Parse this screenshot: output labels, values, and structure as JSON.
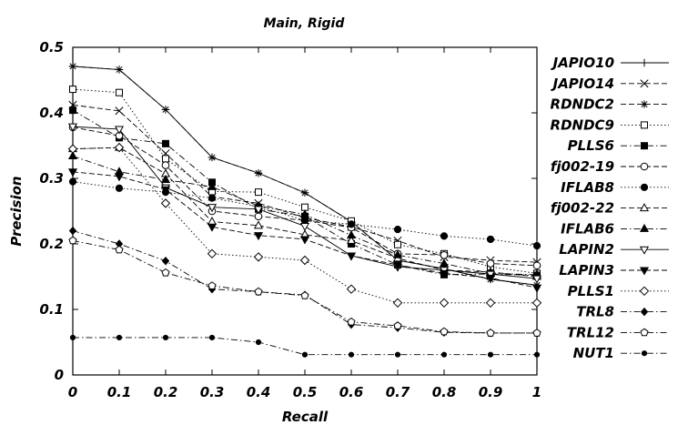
{
  "chart_data": {
    "type": "line",
    "title": "Main, Rigid",
    "xlabel": "Recall",
    "ylabel": "Precision",
    "xlim": [
      0,
      1
    ],
    "ylim": [
      0,
      0.5
    ],
    "x": [
      0,
      0.1,
      0.2,
      0.3,
      0.4,
      0.5,
      0.6,
      0.7,
      0.8,
      0.9,
      1
    ],
    "x_tick_labels": [
      "0",
      "0.1",
      "0.2",
      "0.3",
      "0.4",
      "0.5",
      "0.6",
      "0.7",
      "0.8",
      "0.9",
      "1"
    ],
    "y_ticks": [
      0,
      0.1,
      0.2,
      0.3,
      0.4,
      0.5
    ],
    "y_tick_labels": [
      "0",
      "0.1",
      "0.2",
      "0.3",
      "0.4",
      "0.5"
    ],
    "grid": false,
    "legend_position": "right",
    "series": [
      {
        "name": "JAPIO10",
        "marker": "plus",
        "dash": "solid",
        "values": [
          0.471,
          0.466,
          0.405,
          0.332,
          0.308,
          0.278,
          0.234,
          0.175,
          0.162,
          0.146,
          0.137
        ]
      },
      {
        "name": "JAPIO14",
        "marker": "x",
        "dash": "dashed",
        "values": [
          0.412,
          0.403,
          0.338,
          0.272,
          0.262,
          0.24,
          0.226,
          0.205,
          0.18,
          0.175,
          0.172
        ]
      },
      {
        "name": "RDNDC2",
        "marker": "asterisk",
        "dash": "dashed",
        "values": [
          0.471,
          0.466,
          0.405,
          0.332,
          0.308,
          0.278,
          0.234,
          0.175,
          0.162,
          0.146,
          0.137
        ]
      },
      {
        "name": "RDNDC9",
        "marker": "square-open",
        "dash": "dotted",
        "values": [
          0.436,
          0.431,
          0.33,
          0.28,
          0.279,
          0.256,
          0.235,
          0.199,
          0.185,
          0.165,
          0.155
        ]
      },
      {
        "name": "PLLS6",
        "marker": "square-filled",
        "dash": "dashdot",
        "values": [
          0.404,
          0.362,
          0.353,
          0.294,
          0.253,
          0.242,
          0.2,
          0.168,
          0.153,
          0.154,
          0.152
        ]
      },
      {
        "name": "fj002-19",
        "marker": "circle-open",
        "dash": "dashed",
        "values": [
          0.378,
          0.365,
          0.32,
          0.25,
          0.242,
          0.236,
          0.225,
          0.185,
          0.183,
          0.17,
          0.167
        ]
      },
      {
        "name": "IFLAB8",
        "marker": "circle-filled",
        "dash": "dotted",
        "values": [
          0.295,
          0.285,
          0.279,
          0.27,
          0.257,
          0.236,
          0.23,
          0.222,
          0.212,
          0.207,
          0.197
        ]
      },
      {
        "name": "fj002-22",
        "marker": "triangle-open",
        "dash": "dashed",
        "values": [
          0.345,
          0.347,
          0.307,
          0.234,
          0.228,
          0.214,
          0.205,
          0.178,
          0.16,
          0.157,
          0.15
        ]
      },
      {
        "name": "IFLAB6",
        "marker": "triangle-filled",
        "dash": "dashdot",
        "values": [
          0.334,
          0.31,
          0.298,
          0.287,
          0.258,
          0.245,
          0.213,
          0.183,
          0.17,
          0.155,
          0.153
        ]
      },
      {
        "name": "LAPIN2",
        "marker": "triangle-down-open",
        "dash": "solid",
        "values": [
          0.379,
          0.375,
          0.286,
          0.256,
          0.253,
          0.227,
          0.182,
          0.165,
          0.16,
          0.154,
          0.147
        ]
      },
      {
        "name": "LAPIN3",
        "marker": "triangle-down-filled",
        "dash": "dashed",
        "values": [
          0.31,
          0.303,
          0.283,
          0.226,
          0.213,
          0.207,
          0.182,
          0.168,
          0.155,
          0.148,
          0.133
        ]
      },
      {
        "name": "PLLS1",
        "marker": "diamond-open",
        "dash": "dotted",
        "values": [
          0.345,
          0.347,
          0.262,
          0.185,
          0.18,
          0.175,
          0.131,
          0.11,
          0.11,
          0.11,
          0.11
        ]
      },
      {
        "name": "TRL8",
        "marker": "diamond-filled",
        "dash": "dashdot",
        "values": [
          0.22,
          0.2,
          0.174,
          0.131,
          0.127,
          0.122,
          0.077,
          0.072,
          0.065,
          0.064,
          0.064
        ]
      },
      {
        "name": "TRL12",
        "marker": "pentagon-open",
        "dash": "dashdot",
        "values": [
          0.205,
          0.191,
          0.156,
          0.136,
          0.127,
          0.121,
          0.081,
          0.075,
          0.066,
          0.064,
          0.064
        ]
      },
      {
        "name": "NUT1",
        "marker": "dot",
        "dash": "dashdot",
        "values": [
          0.057,
          0.057,
          0.057,
          0.057,
          0.05,
          0.031,
          0.031,
          0.031,
          0.031,
          0.031,
          0.031
        ]
      }
    ]
  }
}
